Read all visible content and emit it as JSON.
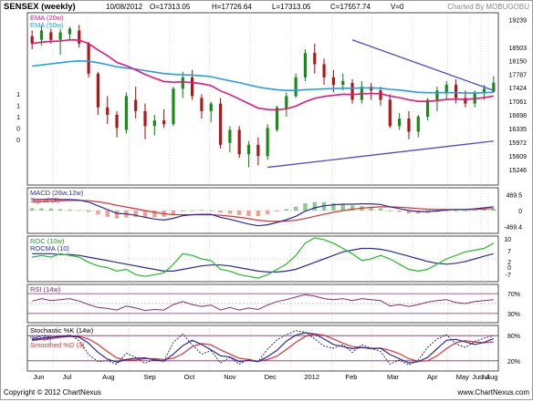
{
  "header": {
    "symbol": "SENSEX (weekly)",
    "date": "10/08/2012",
    "open": "O=17313.05",
    "high": "H=17726.64",
    "low": "L=17313.05",
    "close": "C=17557.74",
    "volume": "V=0",
    "charted_by": "Charted By MOBUGOBU"
  },
  "footer": {
    "copyright": "Copyright © 2012 ChartNexus",
    "website": "www.ChartNexus.com"
  },
  "colors": {
    "up": "#1a8a1a",
    "down": "#b01818",
    "ema20": "#e8157a",
    "ema50": "#1ea0e8",
    "trend": "#4a4ad8",
    "macd": "#2a2aa0",
    "signal": "#e03030",
    "hist_up": "#88cc88",
    "hist_down": "#f0a090",
    "roc": "#20c020",
    "rocma": "#2a2aa0",
    "rsi": "#8a2a7a",
    "stoch_k": "#2a2aa0",
    "stoch_d": "#1a1a6a",
    "stoch_smooth": "#e03030"
  },
  "chart_data": [
    {
      "type": "candlestick",
      "title": "SENSEX (weekly)",
      "legend": [
        "EMA (20w)",
        "EMA (50w)"
      ],
      "x_labels": [
        "Jun",
        "Jul",
        "Aug",
        "Sep",
        "Oct",
        "Nov",
        "Dec",
        "2012",
        "Feb",
        "Mar",
        "Apr",
        "May",
        "Jun",
        "Jul",
        "Aug"
      ],
      "y_ticks": [
        "19239",
        "18503",
        "18150",
        "17787",
        "17424",
        "17061",
        "16698",
        "16335",
        "15972",
        "15609",
        "15246"
      ],
      "y_ticks_left": [
        "1",
        "1",
        "1",
        "0",
        "0"
      ],
      "ylim": [
        14900,
        19350
      ],
      "candles": [
        [
          18800,
          18950,
          18450,
          18600
        ],
        [
          18700,
          19100,
          18550,
          18950
        ],
        [
          18900,
          19000,
          18600,
          18700
        ],
        [
          18700,
          19000,
          18300,
          18900
        ],
        [
          18850,
          19050,
          18700,
          19000
        ],
        [
          18950,
          19100,
          18500,
          18600
        ],
        [
          18600,
          18650,
          17700,
          17800
        ],
        [
          17800,
          17850,
          16700,
          16900
        ],
        [
          16900,
          17200,
          16450,
          16700
        ],
        [
          16700,
          16800,
          16100,
          16350
        ],
        [
          16300,
          17300,
          16200,
          17200
        ],
        [
          17100,
          17450,
          16600,
          16800
        ],
        [
          16800,
          17000,
          16050,
          16400
        ],
        [
          16400,
          16700,
          16150,
          16550
        ],
        [
          16550,
          16850,
          16350,
          16450
        ],
        [
          16450,
          17450,
          16400,
          17400
        ],
        [
          17400,
          17850,
          17150,
          17700
        ],
        [
          17700,
          17900,
          17100,
          17200
        ],
        [
          17150,
          17250,
          16600,
          16800
        ],
        [
          16800,
          17050,
          16500,
          17000
        ],
        [
          17000,
          17150,
          15800,
          15900
        ],
        [
          15950,
          16400,
          15700,
          16300
        ],
        [
          16300,
          16400,
          15550,
          15650
        ],
        [
          15650,
          16000,
          15300,
          15900
        ],
        [
          15900,
          16100,
          15350,
          15600
        ],
        [
          15600,
          16450,
          15500,
          16350
        ],
        [
          16300,
          16950,
          16250,
          16900
        ],
        [
          16850,
          17300,
          16650,
          17200
        ],
        [
          17200,
          17800,
          17150,
          17700
        ],
        [
          17700,
          18450,
          17600,
          18350
        ],
        [
          18350,
          18600,
          17800,
          18050
        ],
        [
          18050,
          18200,
          17500,
          17700
        ],
        [
          17700,
          17900,
          17300,
          17500
        ],
        [
          17500,
          17800,
          17350,
          17600
        ],
        [
          17550,
          17650,
          17000,
          17100
        ],
        [
          17100,
          17600,
          17000,
          17450
        ],
        [
          17450,
          17550,
          17100,
          17350
        ],
        [
          17350,
          17450,
          16950,
          17100
        ],
        [
          17100,
          17250,
          16350,
          16400
        ],
        [
          16400,
          16750,
          16300,
          16600
        ],
        [
          16600,
          16800,
          16050,
          16250
        ],
        [
          16250,
          16700,
          16100,
          16650
        ],
        [
          16650,
          17150,
          16550,
          17100
        ],
        [
          17100,
          17450,
          16800,
          17350
        ],
        [
          17300,
          17600,
          17100,
          17500
        ],
        [
          17500,
          17650,
          17000,
          17150
        ],
        [
          17150,
          17350,
          16900,
          17000
        ],
        [
          17000,
          17350,
          16900,
          17300
        ],
        [
          17300,
          17500,
          17100,
          17400
        ],
        [
          17313.05,
          17726.64,
          17313.05,
          17557.74
        ]
      ],
      "ema20": [
        18600,
        18640,
        18660,
        18670,
        18700,
        18690,
        18600,
        18430,
        18280,
        18100,
        18010,
        17900,
        17780,
        17680,
        17590,
        17570,
        17580,
        17560,
        17530,
        17480,
        17340,
        17240,
        17120,
        17000,
        16880,
        16840,
        16830,
        16860,
        16930,
        17050,
        17140,
        17190,
        17220,
        17250,
        17240,
        17260,
        17270,
        17260,
        17200,
        17160,
        17100,
        17060,
        17060,
        17080,
        17110,
        17120,
        17110,
        17130,
        17160,
        17200
      ],
      "ema50": [
        18000,
        18030,
        18060,
        18090,
        18120,
        18140,
        18130,
        18090,
        18040,
        17980,
        17950,
        17920,
        17880,
        17840,
        17800,
        17780,
        17770,
        17760,
        17740,
        17720,
        17660,
        17610,
        17560,
        17500,
        17440,
        17400,
        17370,
        17350,
        17350,
        17370,
        17380,
        17390,
        17400,
        17410,
        17410,
        17420,
        17420,
        17410,
        17380,
        17360,
        17330,
        17300,
        17290,
        17290,
        17290,
        17290,
        17280,
        17280,
        17290,
        17300
      ],
      "trendlines": [
        [
          [
            34,
            18700
          ],
          [
            49,
            17350
          ]
        ],
        [
          [
            25,
            15300
          ],
          [
            49,
            16000
          ]
        ]
      ]
    },
    {
      "type": "bar+line",
      "legend": [
        "MACD (26w,12w)",
        "Signal (9)"
      ],
      "y_ticks": [
        "469.5",
        "0",
        "-469.4"
      ],
      "ylim": [
        -620,
        620
      ],
      "macd": [
        320,
        330,
        340,
        330,
        330,
        310,
        250,
        140,
        30,
        -80,
        -100,
        -140,
        -200,
        -250,
        -280,
        -230,
        -150,
        -120,
        -110,
        -110,
        -200,
        -260,
        -330,
        -400,
        -450,
        -420,
        -350,
        -270,
        -170,
        -20,
        80,
        140,
        170,
        190,
        190,
        200,
        200,
        180,
        110,
        60,
        0,
        -30,
        -30,
        -10,
        20,
        30,
        30,
        50,
        80,
        110
      ],
      "signal": [
        250,
        265,
        280,
        290,
        298,
        300,
        290,
        260,
        215,
        155,
        105,
        55,
        0,
        -50,
        -95,
        -120,
        -125,
        -125,
        -125,
        -120,
        -140,
        -165,
        -200,
        -240,
        -285,
        -310,
        -320,
        -310,
        -285,
        -235,
        -170,
        -110,
        -50,
        0,
        40,
        70,
        95,
        110,
        110,
        100,
        80,
        60,
        40,
        30,
        30,
        30,
        30,
        35,
        45,
        60
      ],
      "histogram": [
        70,
        65,
        60,
        40,
        32,
        10,
        -40,
        -120,
        -185,
        -235,
        -205,
        -195,
        -200,
        -200,
        -185,
        -110,
        -25,
        5,
        15,
        10,
        -60,
        -95,
        -130,
        -160,
        -165,
        -110,
        -30,
        40,
        115,
        215,
        250,
        250,
        220,
        190,
        150,
        130,
        105,
        70,
        0,
        -40,
        -80,
        -90,
        -70,
        -40,
        -10,
        0,
        0,
        15,
        35,
        50
      ]
    },
    {
      "type": "line",
      "legend": [
        "ROC (10w)",
        "ROCMA (10)"
      ],
      "y_ticks": [
        "10",
        "7",
        "2",
        "0",
        "-7"
      ],
      "ylim": [
        -12,
        12
      ],
      "roc": [
        1,
        2,
        1,
        3,
        2,
        1,
        -2,
        -4,
        -5,
        -7,
        -6,
        -9,
        -10,
        -9,
        -8,
        -3,
        3,
        2,
        0,
        -1,
        -6,
        -7,
        -9,
        -10,
        -11,
        -9,
        -6,
        -3,
        2,
        9,
        12,
        11,
        9,
        6,
        3,
        -1,
        0,
        2,
        0,
        -3,
        -6,
        -7,
        -6,
        -3,
        0,
        2,
        4,
        5,
        6,
        9
      ],
      "rocma": [
        3,
        3,
        3,
        2.5,
        2.5,
        2,
        1,
        0,
        -1,
        -2,
        -3,
        -4,
        -5,
        -6,
        -7,
        -7,
        -6,
        -5,
        -4,
        -3.5,
        -3.5,
        -4,
        -5,
        -6,
        -7,
        -7.5,
        -7.5,
        -7,
        -6,
        -4,
        -2,
        0,
        2,
        4,
        5,
        6,
        6,
        5.5,
        4.5,
        3,
        1.5,
        0,
        -1.5,
        -2.5,
        -3,
        -2.5,
        -1.5,
        0,
        1.5,
        3
      ]
    },
    {
      "type": "line",
      "legend": [
        "RSI (14w)"
      ],
      "y_ticks": [
        "70%",
        "30%"
      ],
      "ylim": [
        15,
        85
      ],
      "rsi": [
        55,
        60,
        56,
        58,
        60,
        55,
        48,
        42,
        40,
        37,
        45,
        41,
        36,
        38,
        37,
        48,
        54,
        48,
        44,
        47,
        37,
        42,
        37,
        41,
        38,
        47,
        54,
        58,
        63,
        68,
        65,
        60,
        58,
        60,
        56,
        60,
        58,
        56,
        45,
        48,
        44,
        48,
        53,
        56,
        58,
        52,
        50,
        54,
        56,
        58
      ]
    },
    {
      "type": "line",
      "legend": [
        "Stochastic %K (14w)",
        "%D (3)",
        "Smoothed %D (3)"
      ],
      "y_ticks": [
        "80%",
        "20%"
      ],
      "ylim": [
        0,
        100
      ],
      "k": [
        72,
        80,
        76,
        78,
        82,
        68,
        35,
        18,
        20,
        12,
        38,
        28,
        14,
        24,
        20,
        64,
        84,
        58,
        36,
        44,
        15,
        28,
        12,
        24,
        18,
        48,
        70,
        82,
        92,
        88,
        72,
        55,
        50,
        58,
        40,
        58,
        50,
        42,
        12,
        22,
        10,
        22,
        52,
        72,
        82,
        60,
        52,
        66,
        74,
        80
      ],
      "d": [
        70,
        74,
        76,
        78,
        79,
        76,
        62,
        40,
        24,
        17,
        23,
        26,
        27,
        22,
        19,
        36,
        56,
        69,
        59,
        46,
        32,
        29,
        18,
        21,
        18,
        30,
        45,
        67,
        81,
        87,
        84,
        72,
        59,
        54,
        49,
        52,
        49,
        50,
        35,
        25,
        15,
        18,
        28,
        49,
        69,
        71,
        65,
        59,
        64,
        73
      ],
      "smoothed": [
        68,
        71,
        73,
        76,
        78,
        78,
        72,
        59,
        42,
        27,
        21,
        22,
        25,
        25,
        23,
        26,
        37,
        54,
        61,
        58,
        46,
        36,
        26,
        23,
        19,
        23,
        31,
        47,
        64,
        78,
        84,
        81,
        72,
        62,
        54,
        52,
        50,
        50,
        45,
        37,
        25,
        19,
        20,
        32,
        49,
        63,
        68,
        65,
        63,
        65
      ]
    }
  ]
}
